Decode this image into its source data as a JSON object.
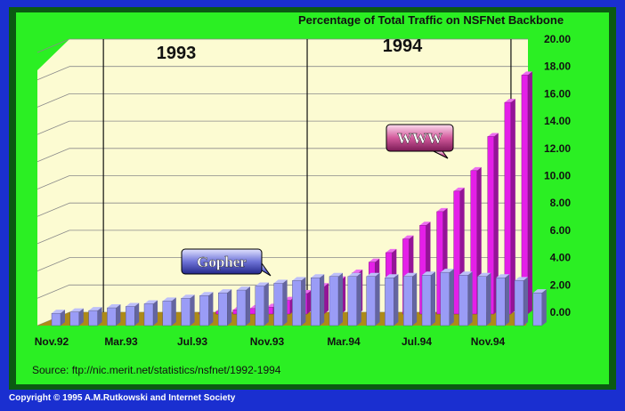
{
  "copyright": "Copyright © 1995 A.M.Rutkowski and Internet Society",
  "chart_data": {
    "type": "bar",
    "title": "Percentage of Total Traffic on NSFNet Backbone",
    "source": "Source: ftp://nic.merit.net/statistics/nsfnet/1992-1994",
    "year_labels": [
      "1993",
      "1994"
    ],
    "x_tick_labels": [
      "Nov.92",
      "Mar.93",
      "Jul.93",
      "Nov.93",
      "Mar.94",
      "Jul.94",
      "Nov.94"
    ],
    "y_ticks": [
      "0.00",
      "2.00",
      "4.00",
      "6.00",
      "8.00",
      "10.00",
      "12.00",
      "14.00",
      "16.00",
      "18.00",
      "20.00"
    ],
    "ylim": [
      0,
      20
    ],
    "months": [
      "Nov.92",
      "Dec.92",
      "Jan.93",
      "Feb.93",
      "Mar.93",
      "Apr.93",
      "May.93",
      "Jun.93",
      "Jul.93",
      "Aug.93",
      "Sep.93",
      "Oct.93",
      "Nov.93",
      "Dec.93",
      "Jan.94",
      "Feb.94",
      "Mar.94",
      "Apr.94",
      "May.94",
      "Jun.94",
      "Jul.94",
      "Aug.94",
      "Sep.94",
      "Oct.94",
      "Nov.94",
      "Dec.94",
      "Jan.95"
    ],
    "series": [
      {
        "name": "Gopher",
        "color": "#9a9cf6",
        "values": [
          0.9,
          1.0,
          1.1,
          1.3,
          1.4,
          1.6,
          1.8,
          2.0,
          2.2,
          2.4,
          2.6,
          2.9,
          3.1,
          3.3,
          3.5,
          3.6,
          3.6,
          3.6,
          3.5,
          3.6,
          3.7,
          3.9,
          3.7,
          3.6,
          3.5,
          3.3,
          2.4
        ]
      },
      {
        "name": "WWW",
        "color": "#e41fe8",
        "values": [
          0.0,
          0.0,
          0.0,
          0.0,
          0.0,
          0.0,
          0.1,
          0.1,
          0.2,
          0.3,
          0.4,
          0.5,
          1.0,
          1.5,
          2.0,
          2.5,
          3.0,
          3.8,
          4.5,
          5.5,
          6.5,
          7.5,
          9.0,
          10.5,
          13.0,
          15.5,
          17.5
        ]
      }
    ],
    "colors": {
      "plot_wall": "#fcfbd2",
      "floor": "#ad8a17",
      "panel": "#2bef23",
      "frame": "#0b5a12",
      "border": "#1a2fd0"
    }
  }
}
